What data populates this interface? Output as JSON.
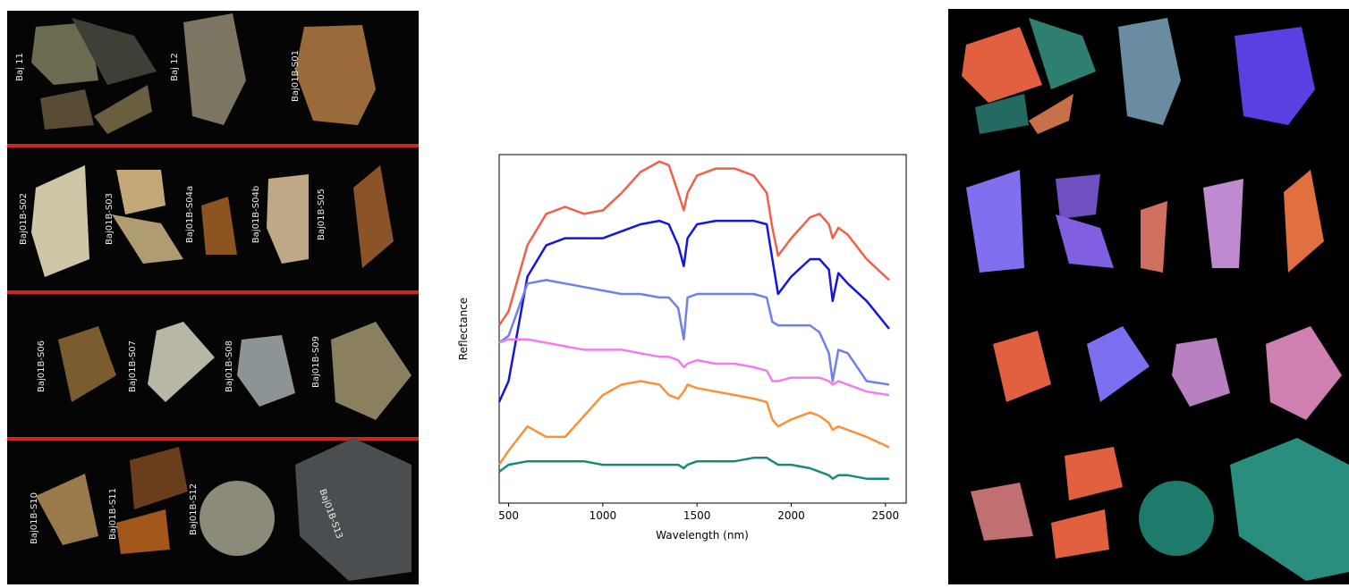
{
  "photo_labels": [
    "Baj 11",
    "Baj 12",
    "Baj01B-S01",
    "Baj01B-S02",
    "Baj01B-S03",
    "Baj01B-S04a",
    "Baj01B-S04b",
    "Baj01B-S05",
    "Baj01B-S06",
    "Baj01B-S07",
    "Baj01B-S08",
    "Baj01B-S09",
    "Baj01B-S10",
    "Baj01B-S11",
    "Baj01B-S12",
    "Baj01B-S13"
  ],
  "chart_data": {
    "type": "line",
    "xlabel": "Wavelength (nm)",
    "ylabel": "Reflectance",
    "xlim": [
      450,
      2610
    ],
    "xticks": [
      500,
      1000,
      1500,
      2000,
      2500
    ],
    "ylim": [
      0,
      1
    ],
    "x": [
      450,
      500,
      600,
      700,
      800,
      900,
      1000,
      1100,
      1200,
      1300,
      1350,
      1400,
      1430,
      1450,
      1500,
      1600,
      1700,
      1800,
      1870,
      1900,
      1930,
      2000,
      2100,
      2150,
      2200,
      2220,
      2250,
      2300,
      2400,
      2520
    ],
    "series": [
      {
        "color": "#f0604a",
        "values": [
          0.51,
          0.55,
          0.74,
          0.83,
          0.85,
          0.83,
          0.84,
          0.89,
          0.95,
          0.98,
          0.97,
          0.89,
          0.84,
          0.89,
          0.94,
          0.96,
          0.96,
          0.94,
          0.89,
          0.79,
          0.71,
          0.76,
          0.82,
          0.83,
          0.8,
          0.76,
          0.79,
          0.77,
          0.7,
          0.64
        ]
      },
      {
        "color": "#1515e0",
        "values": [
          0.29,
          0.35,
          0.65,
          0.74,
          0.76,
          0.76,
          0.76,
          0.78,
          0.8,
          0.81,
          0.8,
          0.74,
          0.68,
          0.76,
          0.8,
          0.81,
          0.81,
          0.81,
          0.8,
          0.7,
          0.6,
          0.65,
          0.7,
          0.7,
          0.67,
          0.58,
          0.66,
          0.63,
          0.58,
          0.5
        ]
      },
      {
        "color": "#6f7ff0",
        "values": [
          0.46,
          0.48,
          0.63,
          0.64,
          0.63,
          0.62,
          0.61,
          0.6,
          0.6,
          0.59,
          0.59,
          0.56,
          0.47,
          0.59,
          0.6,
          0.6,
          0.6,
          0.6,
          0.59,
          0.52,
          0.51,
          0.51,
          0.51,
          0.49,
          0.43,
          0.35,
          0.44,
          0.43,
          0.35,
          0.34
        ]
      },
      {
        "color": "#f07cf0",
        "values": [
          0.46,
          0.47,
          0.47,
          0.46,
          0.45,
          0.44,
          0.44,
          0.44,
          0.43,
          0.42,
          0.42,
          0.41,
          0.39,
          0.4,
          0.41,
          0.4,
          0.4,
          0.39,
          0.38,
          0.35,
          0.35,
          0.36,
          0.36,
          0.36,
          0.35,
          0.34,
          0.35,
          0.34,
          0.32,
          0.31
        ]
      },
      {
        "color": "#f9913a",
        "values": [
          0.11,
          0.15,
          0.22,
          0.19,
          0.19,
          0.25,
          0.31,
          0.34,
          0.35,
          0.34,
          0.31,
          0.3,
          0.32,
          0.34,
          0.33,
          0.32,
          0.31,
          0.3,
          0.29,
          0.24,
          0.22,
          0.24,
          0.26,
          0.25,
          0.23,
          0.21,
          0.22,
          0.21,
          0.19,
          0.16
        ]
      },
      {
        "color": "#1a8a78",
        "values": [
          0.09,
          0.11,
          0.12,
          0.12,
          0.12,
          0.12,
          0.11,
          0.11,
          0.11,
          0.11,
          0.11,
          0.11,
          0.1,
          0.11,
          0.12,
          0.12,
          0.12,
          0.13,
          0.13,
          0.12,
          0.11,
          0.11,
          0.1,
          0.09,
          0.08,
          0.07,
          0.08,
          0.08,
          0.07,
          0.07
        ]
      }
    ]
  }
}
